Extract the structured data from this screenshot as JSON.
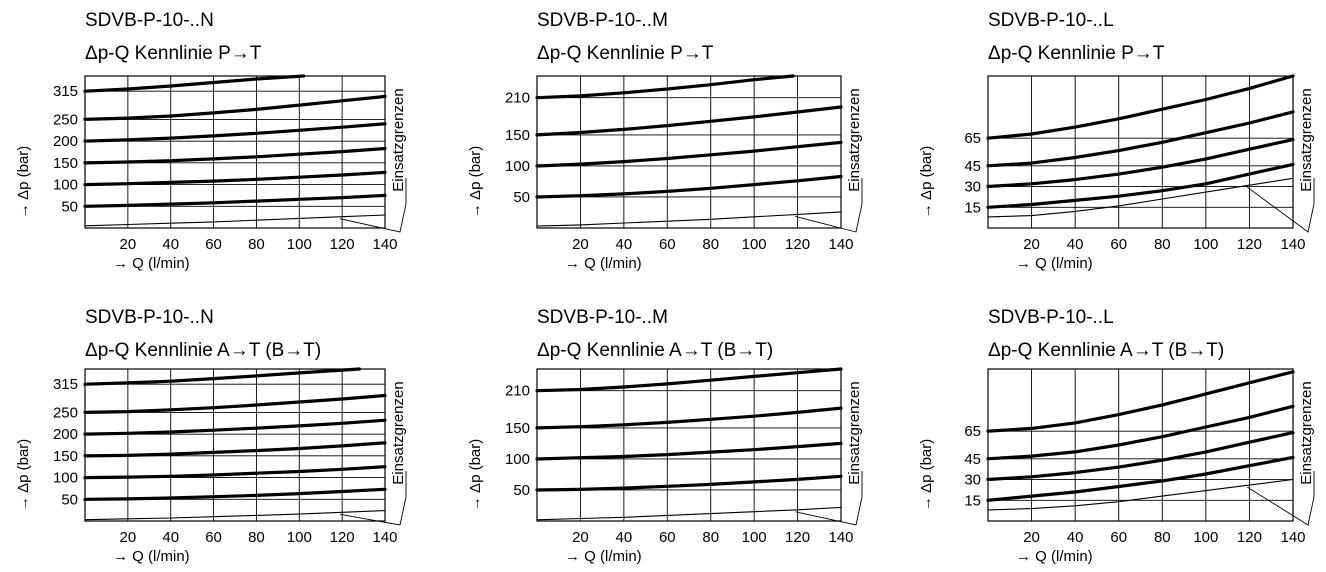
{
  "chart_data": [
    {
      "type": "line",
      "title": "SDVB-P-10-..N",
      "subtitle": "Δp-Q Kennlinie P→T",
      "xlabel": "→ Q (l/min)",
      "ylabel": "→ Δp (bar)",
      "annotation": "Einsatzgrenzen",
      "xlim": [
        0,
        140
      ],
      "ylim": [
        0,
        350
      ],
      "xticks": [
        20,
        40,
        60,
        80,
        100,
        120,
        140
      ],
      "xtick_labels": [
        "20",
        "40",
        "60",
        "80",
        "100",
        "120",
        "140"
      ],
      "yticks": [
        50,
        100,
        150,
        200,
        250,
        315
      ],
      "ytick_labels": [
        "50",
        "100",
        "150",
        "200",
        "250",
        "315"
      ],
      "grid": true,
      "series": [
        {
          "x": [
            0,
            20,
            40,
            60,
            80,
            102
          ],
          "values": [
            315,
            320,
            327,
            335,
            343,
            350
          ]
        },
        {
          "x": [
            0,
            20,
            40,
            60,
            80,
            100,
            120,
            140
          ],
          "values": [
            250,
            253,
            258,
            265,
            273,
            283,
            293,
            303
          ]
        },
        {
          "x": [
            0,
            20,
            40,
            60,
            80,
            100,
            120,
            140
          ],
          "values": [
            200,
            203,
            207,
            212,
            218,
            225,
            232,
            240
          ]
        },
        {
          "x": [
            0,
            20,
            40,
            60,
            80,
            100,
            120,
            140
          ],
          "values": [
            150,
            152,
            155,
            159,
            164,
            170,
            176,
            183
          ]
        },
        {
          "x": [
            0,
            20,
            40,
            60,
            80,
            100,
            120,
            140
          ],
          "values": [
            100,
            102,
            105,
            108,
            112,
            117,
            122,
            128
          ]
        },
        {
          "x": [
            0,
            20,
            40,
            60,
            80,
            100,
            120,
            140
          ],
          "values": [
            50,
            52,
            55,
            58,
            62,
            66,
            70,
            75
          ]
        },
        {
          "x": [
            0,
            20,
            40,
            60,
            80,
            100,
            120,
            140
          ],
          "values": [
            5,
            8,
            11,
            14,
            18,
            22,
            26,
            30
          ]
        }
      ]
    },
    {
      "type": "line",
      "title": "SDVB-P-10-..M",
      "subtitle": "Δp-Q Kennlinie P→T",
      "xlabel": "→ Q (l/min)",
      "ylabel": "→ Δp (bar)",
      "annotation": "Einsatzgrenzen",
      "xlim": [
        0,
        140
      ],
      "ylim": [
        0,
        245
      ],
      "xticks": [
        20,
        40,
        60,
        80,
        100,
        120,
        140
      ],
      "xtick_labels": [
        "20",
        "40",
        "60",
        "80",
        "100",
        "120",
        "140"
      ],
      "yticks": [
        50,
        100,
        150,
        210
      ],
      "ytick_labels": [
        "50",
        "100",
        "150",
        "210"
      ],
      "grid": true,
      "series": [
        {
          "x": [
            0,
            20,
            40,
            60,
            80,
            100,
            118
          ],
          "values": [
            210,
            213,
            218,
            224,
            231,
            239,
            245
          ]
        },
        {
          "x": [
            0,
            20,
            40,
            60,
            80,
            100,
            120,
            140
          ],
          "values": [
            150,
            154,
            159,
            165,
            172,
            179,
            187,
            195
          ]
        },
        {
          "x": [
            0,
            20,
            40,
            60,
            80,
            100,
            120,
            140
          ],
          "values": [
            100,
            103,
            107,
            112,
            118,
            124,
            131,
            138
          ]
        },
        {
          "x": [
            0,
            20,
            40,
            60,
            80,
            100,
            120,
            140
          ],
          "values": [
            50,
            52,
            55,
            59,
            64,
            70,
            76,
            83
          ]
        },
        {
          "x": [
            0,
            20,
            40,
            60,
            80,
            100,
            120,
            140
          ],
          "values": [
            3,
            5,
            8,
            11,
            14,
            18,
            22,
            26
          ]
        }
      ]
    },
    {
      "type": "line",
      "title": "SDVB-P-10-..L",
      "subtitle": "Δp-Q Kennlinie P→T",
      "xlabel": "→ Q (l/min)",
      "ylabel": "→ Δp (bar)",
      "annotation": "Einsatzgrenzen",
      "xlim": [
        0,
        140
      ],
      "ylim": [
        0,
        110
      ],
      "xticks": [
        20,
        40,
        60,
        80,
        100,
        120,
        140
      ],
      "xtick_labels": [
        "20",
        "40",
        "60",
        "80",
        "100",
        "120",
        "140"
      ],
      "yticks": [
        15,
        30,
        45,
        65
      ],
      "ytick_labels": [
        "15",
        "30",
        "45",
        "65"
      ],
      "grid": true,
      "series": [
        {
          "x": [
            0,
            20,
            40,
            60,
            80,
            100,
            120,
            140
          ],
          "values": [
            65,
            68,
            73,
            79,
            86,
            93,
            101,
            110
          ]
        },
        {
          "x": [
            0,
            20,
            40,
            60,
            80,
            100,
            120,
            140
          ],
          "values": [
            45,
            47,
            51,
            56,
            62,
            69,
            76,
            84
          ]
        },
        {
          "x": [
            0,
            20,
            40,
            60,
            80,
            100,
            120,
            140
          ],
          "values": [
            30,
            32,
            35,
            39,
            44,
            50,
            57,
            64
          ]
        },
        {
          "x": [
            0,
            20,
            40,
            60,
            80,
            100,
            120,
            140
          ],
          "values": [
            15,
            17,
            20,
            23,
            27,
            32,
            39,
            46
          ]
        },
        {
          "x": [
            0,
            20,
            40,
            60,
            80,
            100,
            120,
            140
          ],
          "values": [
            8,
            9,
            12,
            16,
            21,
            26,
            31,
            36
          ]
        }
      ]
    },
    {
      "type": "line",
      "title": "SDVB-P-10-..N",
      "subtitle": "Δp-Q Kennlinie A→T (B→T)",
      "xlabel": "→ Q (l/min)",
      "ylabel": "→ Δp (bar)",
      "annotation": "Einsatzgrenzen",
      "xlim": [
        0,
        140
      ],
      "ylim": [
        0,
        350
      ],
      "xticks": [
        20,
        40,
        60,
        80,
        100,
        120,
        140
      ],
      "xtick_labels": [
        "20",
        "40",
        "60",
        "80",
        "100",
        "120",
        "140"
      ],
      "yticks": [
        50,
        100,
        150,
        200,
        250,
        315
      ],
      "ytick_labels": [
        "50",
        "100",
        "150",
        "200",
        "250",
        "315"
      ],
      "grid": true,
      "series": [
        {
          "x": [
            0,
            20,
            40,
            60,
            80,
            100,
            128
          ],
          "values": [
            315,
            318,
            322,
            328,
            334,
            341,
            350
          ]
        },
        {
          "x": [
            0,
            20,
            40,
            60,
            80,
            100,
            120,
            140
          ],
          "values": [
            250,
            252,
            256,
            261,
            267,
            274,
            281,
            289
          ]
        },
        {
          "x": [
            0,
            20,
            40,
            60,
            80,
            100,
            120,
            140
          ],
          "values": [
            200,
            202,
            205,
            209,
            214,
            219,
            225,
            232
          ]
        },
        {
          "x": [
            0,
            20,
            40,
            60,
            80,
            100,
            120,
            140
          ],
          "values": [
            150,
            151,
            154,
            158,
            162,
            167,
            173,
            180
          ]
        },
        {
          "x": [
            0,
            20,
            40,
            60,
            80,
            100,
            120,
            140
          ],
          "values": [
            100,
            101,
            103,
            106,
            110,
            114,
            119,
            125
          ]
        },
        {
          "x": [
            0,
            20,
            40,
            60,
            80,
            100,
            120,
            140
          ],
          "values": [
            50,
            51,
            53,
            56,
            59,
            63,
            68,
            73
          ]
        },
        {
          "x": [
            0,
            20,
            40,
            60,
            80,
            100,
            120,
            140
          ],
          "values": [
            3,
            5,
            7,
            10,
            13,
            16,
            20,
            24
          ]
        }
      ]
    },
    {
      "type": "line",
      "title": "SDVB-P-10-..M",
      "subtitle": "Δp-Q Kennlinie A→T (B→T)",
      "xlabel": "→ Q (l/min)",
      "ylabel": "→ Δp (bar)",
      "annotation": "Einsatzgrenzen",
      "xlim": [
        0,
        140
      ],
      "ylim": [
        0,
        245
      ],
      "xticks": [
        20,
        40,
        60,
        80,
        100,
        120,
        140
      ],
      "xtick_labels": [
        "20",
        "40",
        "60",
        "80",
        "100",
        "120",
        "140"
      ],
      "yticks": [
        50,
        100,
        150,
        210
      ],
      "ytick_labels": [
        "50",
        "100",
        "150",
        "210"
      ],
      "grid": true,
      "series": [
        {
          "x": [
            0,
            20,
            40,
            60,
            80,
            100,
            120,
            140
          ],
          "values": [
            210,
            212,
            216,
            221,
            227,
            233,
            239,
            245
          ]
        },
        {
          "x": [
            0,
            20,
            40,
            60,
            80,
            100,
            120,
            140
          ],
          "values": [
            150,
            152,
            155,
            159,
            164,
            169,
            175,
            182
          ]
        },
        {
          "x": [
            0,
            20,
            40,
            60,
            80,
            100,
            120,
            140
          ],
          "values": [
            100,
            102,
            104,
            107,
            111,
            115,
            120,
            125
          ]
        },
        {
          "x": [
            0,
            20,
            40,
            60,
            80,
            100,
            120,
            140
          ],
          "values": [
            50,
            51,
            53,
            56,
            59,
            63,
            67,
            72
          ]
        },
        {
          "x": [
            0,
            20,
            40,
            60,
            80,
            100,
            120,
            140
          ],
          "values": [
            2,
            4,
            6,
            9,
            12,
            15,
            18,
            22
          ]
        }
      ]
    },
    {
      "type": "line",
      "title": "SDVB-P-10-..L",
      "subtitle": "Δp-Q Kennlinie A→T (B→T)",
      "xlabel": "→ Q (l/min)",
      "ylabel": "→ Δp (bar)",
      "annotation": "Einsatzgrenzen",
      "xlim": [
        0,
        140
      ],
      "ylim": [
        0,
        110
      ],
      "xticks": [
        20,
        40,
        60,
        80,
        100,
        120,
        140
      ],
      "xtick_labels": [
        "20",
        "40",
        "60",
        "80",
        "100",
        "120",
        "140"
      ],
      "yticks": [
        15,
        30,
        45,
        65
      ],
      "ytick_labels": [
        "15",
        "30",
        "45",
        "65"
      ],
      "grid": true,
      "series": [
        {
          "x": [
            0,
            20,
            40,
            60,
            80,
            100,
            120,
            140
          ],
          "values": [
            65,
            67,
            71,
            77,
            84,
            92,
            100,
            108
          ]
        },
        {
          "x": [
            0,
            20,
            40,
            60,
            80,
            100,
            120,
            140
          ],
          "values": [
            45,
            47,
            50,
            55,
            61,
            68,
            75,
            83
          ]
        },
        {
          "x": [
            0,
            20,
            40,
            60,
            80,
            100,
            120,
            140
          ],
          "values": [
            30,
            32,
            35,
            39,
            44,
            50,
            57,
            64
          ]
        },
        {
          "x": [
            0,
            20,
            40,
            60,
            80,
            100,
            120,
            140
          ],
          "values": [
            15,
            18,
            21,
            25,
            29,
            34,
            40,
            46
          ]
        },
        {
          "x": [
            0,
            20,
            40,
            60,
            80,
            100,
            120,
            140
          ],
          "values": [
            8,
            9,
            11,
            14,
            18,
            22,
            26,
            30
          ]
        }
      ]
    }
  ]
}
